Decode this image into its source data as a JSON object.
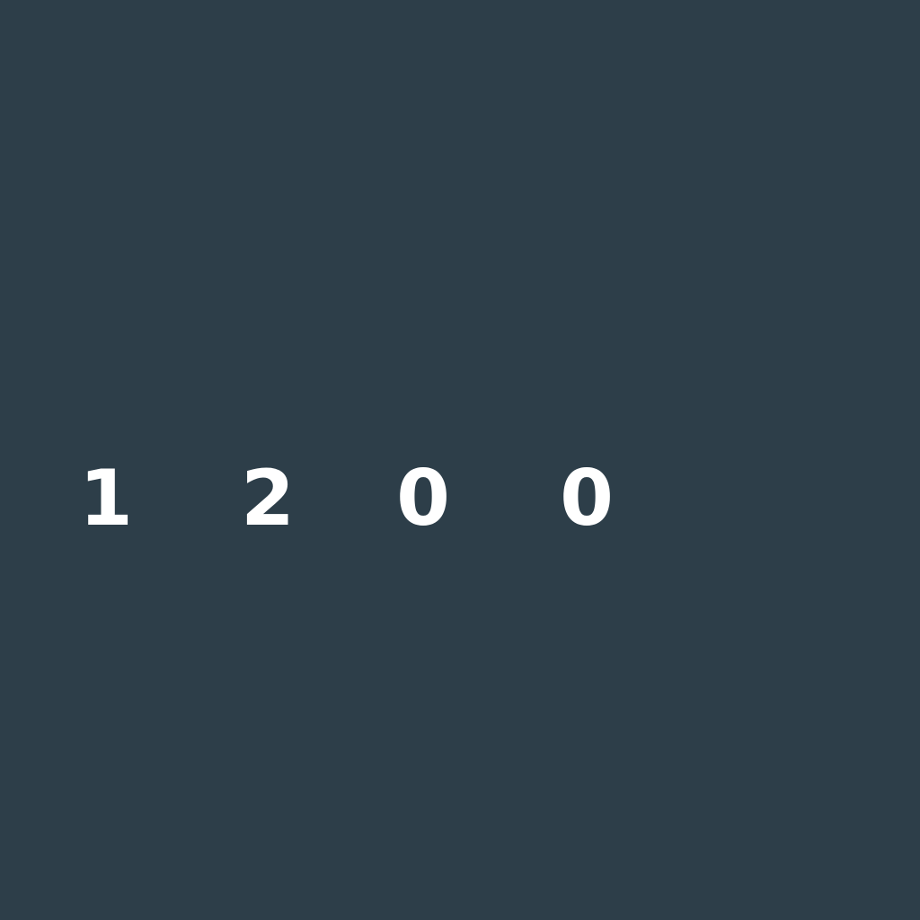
{
  "display": {
    "digits": [
      "1",
      "2",
      "0",
      "0"
    ]
  },
  "colors": {
    "background": "#2d3e49",
    "digit": "#ffffff"
  }
}
